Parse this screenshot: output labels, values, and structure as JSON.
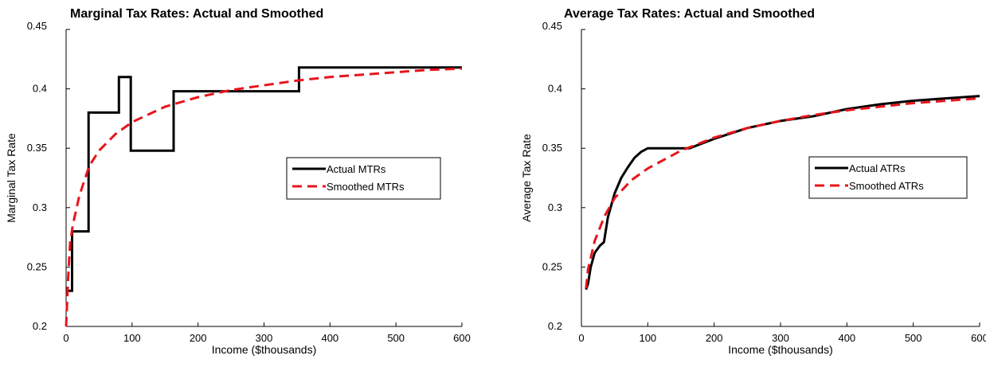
{
  "chart_data": [
    {
      "type": "line",
      "title": "Marginal Tax Rates: Actual and Smoothed",
      "xlabel": "Income ($thousands)",
      "ylabel": "Marginal Tax Rate",
      "xlim": [
        0,
        600
      ],
      "ylim": [
        0.2,
        0.45
      ],
      "x_ticks": [
        "0",
        "100",
        "200",
        "300",
        "400",
        "500",
        "600"
      ],
      "y_ticks": [
        "0.2",
        "0.25",
        "0.3",
        "0.35",
        "0.4",
        "0.45"
      ],
      "legend_position": "right",
      "grid": false,
      "series": [
        {
          "name": "Actual MTRs",
          "color": "#000000",
          "style": "solid",
          "x": [
            0,
            9,
            9,
            34,
            34,
            80,
            80,
            98,
            98,
            163,
            163,
            353,
            353,
            600
          ],
          "y": [
            0.23,
            0.23,
            0.28,
            0.28,
            0.38,
            0.38,
            0.41,
            0.41,
            0.348,
            0.348,
            0.398,
            0.398,
            0.418,
            0.418
          ]
        },
        {
          "name": "Smoothed MTRs",
          "color": "#e8141b",
          "style": "dashed",
          "x": [
            0,
            3,
            6,
            10,
            20,
            35,
            50,
            75,
            100,
            150,
            200,
            250,
            300,
            350,
            400,
            450,
            500,
            550,
            600
          ],
          "y": [
            0.2,
            0.24,
            0.27,
            0.285,
            0.31,
            0.335,
            0.348,
            0.362,
            0.372,
            0.385,
            0.393,
            0.399,
            0.403,
            0.407,
            0.41,
            0.412,
            0.414,
            0.416,
            0.417
          ]
        }
      ]
    },
    {
      "type": "line",
      "title": "Average Tax Rates: Actual and Smoothed",
      "xlabel": "Income ($thousands)",
      "ylabel": "Average Tax Rate",
      "xlim": [
        0,
        600
      ],
      "ylim": [
        0.2,
        0.45
      ],
      "x_ticks": [
        "0",
        "100",
        "200",
        "300",
        "400",
        "500",
        "600"
      ],
      "y_ticks": [
        "0.2",
        "0.25",
        "0.3",
        "0.35",
        "0.4",
        "0.45"
      ],
      "legend_position": "right",
      "grid": false,
      "series": [
        {
          "name": "Actual ATRs",
          "color": "#000000",
          "style": "solid",
          "x": [
            7,
            10,
            14,
            20,
            28,
            34,
            40,
            50,
            60,
            70,
            80,
            90,
            100,
            130,
            163,
            200,
            250,
            300,
            350,
            400,
            450,
            500,
            550,
            600
          ],
          "y": [
            0.231,
            0.236,
            0.25,
            0.262,
            0.268,
            0.271,
            0.292,
            0.312,
            0.325,
            0.334,
            0.342,
            0.347,
            0.35,
            0.35,
            0.35,
            0.358,
            0.367,
            0.373,
            0.377,
            0.383,
            0.387,
            0.39,
            0.392,
            0.394
          ]
        },
        {
          "name": "Smoothed ATRs",
          "color": "#e8141b",
          "style": "dashed",
          "x": [
            7,
            10,
            20,
            35,
            50,
            75,
            100,
            150,
            200,
            250,
            300,
            350,
            400,
            450,
            500,
            550,
            600
          ],
          "y": [
            0.232,
            0.248,
            0.272,
            0.293,
            0.308,
            0.323,
            0.333,
            0.348,
            0.359,
            0.367,
            0.373,
            0.378,
            0.382,
            0.385,
            0.388,
            0.39,
            0.392
          ]
        }
      ]
    }
  ]
}
